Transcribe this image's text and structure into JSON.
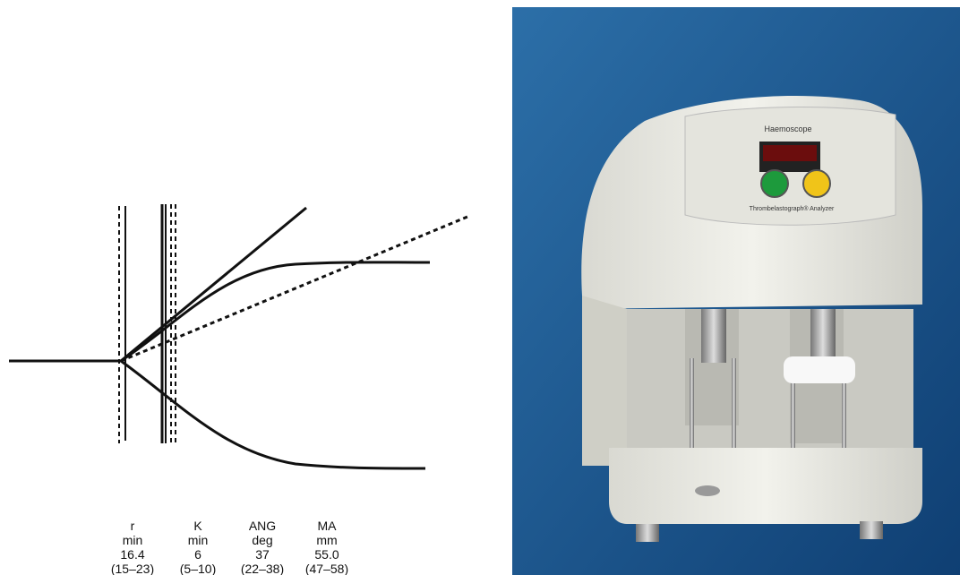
{
  "diagram": {
    "columns": [
      {
        "parameter": "r",
        "unit": "min",
        "value": "16.4",
        "range": "(15–23)"
      },
      {
        "parameter": "K",
        "unit": "min",
        "value": "6",
        "range": "(5–10)"
      },
      {
        "parameter": "ANG",
        "unit": "deg",
        "value": "37",
        "range": "(22–38)"
      },
      {
        "parameter": "MA",
        "unit": "mm",
        "value": "55.0",
        "range": "(47–58)"
      }
    ]
  },
  "photo": {
    "brand": "Haemoscope",
    "model": "Thrombelastograph® Analyzer"
  }
}
